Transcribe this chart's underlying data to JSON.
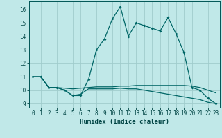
{
  "title": "",
  "xlabel": "Humidex (Indice chaleur)",
  "ylabel": "",
  "bg_color": "#c0e8e8",
  "line_color": "#006666",
  "grid_color": "#a0cccc",
  "xlim": [
    -0.5,
    23.5
  ],
  "ylim": [
    8.7,
    16.6
  ],
  "xticks": [
    0,
    1,
    2,
    3,
    4,
    5,
    6,
    7,
    8,
    9,
    10,
    11,
    12,
    13,
    14,
    15,
    16,
    17,
    18,
    19,
    20,
    21,
    22,
    23
  ],
  "yticks": [
    9,
    10,
    11,
    12,
    13,
    14,
    15,
    16
  ],
  "line1_x": [
    0,
    1,
    2,
    3,
    4,
    5,
    6,
    7,
    8,
    9,
    10,
    11,
    12,
    13,
    14,
    15,
    16,
    17,
    18,
    19,
    20,
    21,
    22,
    23
  ],
  "line1_y": [
    11.0,
    11.0,
    10.2,
    10.2,
    10.0,
    9.6,
    9.6,
    10.8,
    13.0,
    13.8,
    15.3,
    16.2,
    14.0,
    15.0,
    14.8,
    14.6,
    14.4,
    15.4,
    14.2,
    12.8,
    10.2,
    10.0,
    9.4,
    9.0
  ],
  "line2_x": [
    0,
    1,
    2,
    3,
    4,
    5,
    6,
    7,
    8,
    9,
    10,
    11,
    12,
    13,
    14,
    15,
    16,
    17,
    18,
    19,
    20,
    21,
    22,
    23
  ],
  "line2_y": [
    11.0,
    11.0,
    10.2,
    10.2,
    10.15,
    10.1,
    10.15,
    10.2,
    10.25,
    10.25,
    10.25,
    10.3,
    10.3,
    10.35,
    10.35,
    10.35,
    10.35,
    10.35,
    10.35,
    10.35,
    10.3,
    10.2,
    10.0,
    9.8
  ],
  "line3_x": [
    0,
    1,
    2,
    3,
    4,
    5,
    6,
    7,
    8,
    9,
    10,
    11,
    12,
    13,
    14,
    15,
    16,
    17,
    18,
    19,
    20,
    21,
    22,
    23
  ],
  "line3_y": [
    11.0,
    11.0,
    10.2,
    10.2,
    10.0,
    9.6,
    9.7,
    10.1,
    10.1,
    10.1,
    10.1,
    10.15,
    10.1,
    10.1,
    10.0,
    9.9,
    9.8,
    9.7,
    9.6,
    9.5,
    9.4,
    9.3,
    9.1,
    9.0
  ]
}
